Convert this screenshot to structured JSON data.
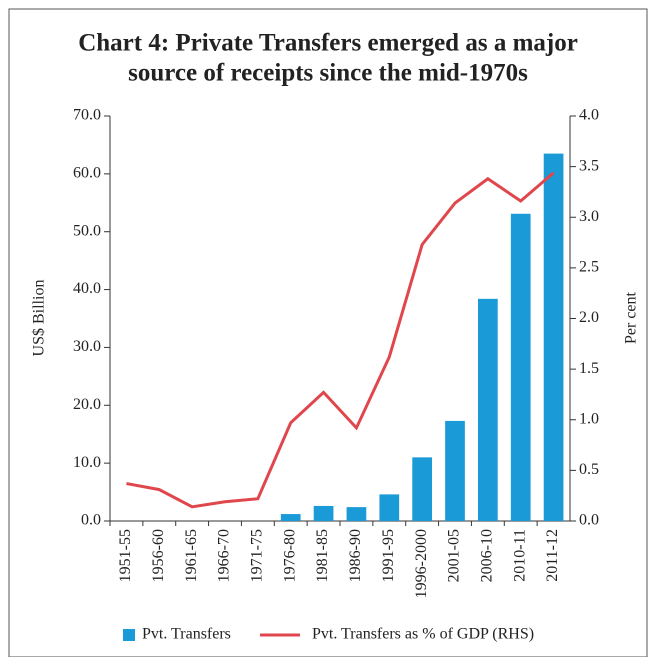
{
  "chart_data": {
    "type": "bar-line",
    "title": [
      "Chart 4: Private Transfers  emerged  as  a major",
      "source of receipts since the mid-1970s"
    ],
    "y_label": "US$ Billion",
    "y2_label": "Per cent",
    "categories": [
      "1951-55",
      "1956-60",
      "1961-65",
      "1966-70",
      "1971-75",
      "1976-80",
      "1981-85",
      "1986-90",
      "1991-95",
      "1996-2000",
      "2001-05",
      "2006-10",
      "2010-11",
      "2011-12"
    ],
    "series": [
      {
        "name": "Pvt. Transfers",
        "type": "bar",
        "color": "#1a9ad6",
        "values": [
          0,
          0,
          0,
          0,
          0,
          1.2,
          2.6,
          2.4,
          4.6,
          11.0,
          17.3,
          38.4,
          53.1,
          63.5
        ]
      },
      {
        "name": "Pvt. Transfers as % of GDP (RHS)",
        "type": "line",
        "axis": "y2",
        "color": "#e0474c",
        "values": [
          0.37,
          0.31,
          0.14,
          0.19,
          0.22,
          0.97,
          1.27,
          0.92,
          1.62,
          2.73,
          3.14,
          3.38,
          3.16,
          3.44
        ]
      }
    ],
    "ylim": [
      0,
      70
    ],
    "yticks": [
      {
        "value": 0,
        "label": "0.0"
      },
      {
        "value": 10,
        "label": "10.0"
      },
      {
        "value": 20,
        "label": "20.0"
      },
      {
        "value": 30,
        "label": "30.0"
      },
      {
        "value": 40,
        "label": "40.0"
      },
      {
        "value": 50,
        "label": "50.0"
      },
      {
        "value": 60,
        "label": "60.0"
      },
      {
        "value": 70,
        "label": "70.0"
      }
    ],
    "y2lim": [
      0,
      4
    ],
    "y2ticks": [
      {
        "value": 0,
        "label": "0.0"
      },
      0.5,
      {
        "value": 1,
        "label": "1.0"
      },
      1.5,
      {
        "value": 2,
        "label": "2.0"
      },
      2.5,
      {
        "value": 3,
        "label": "3.0"
      },
      3.5,
      {
        "value": 4,
        "label": "4.0"
      }
    ]
  }
}
